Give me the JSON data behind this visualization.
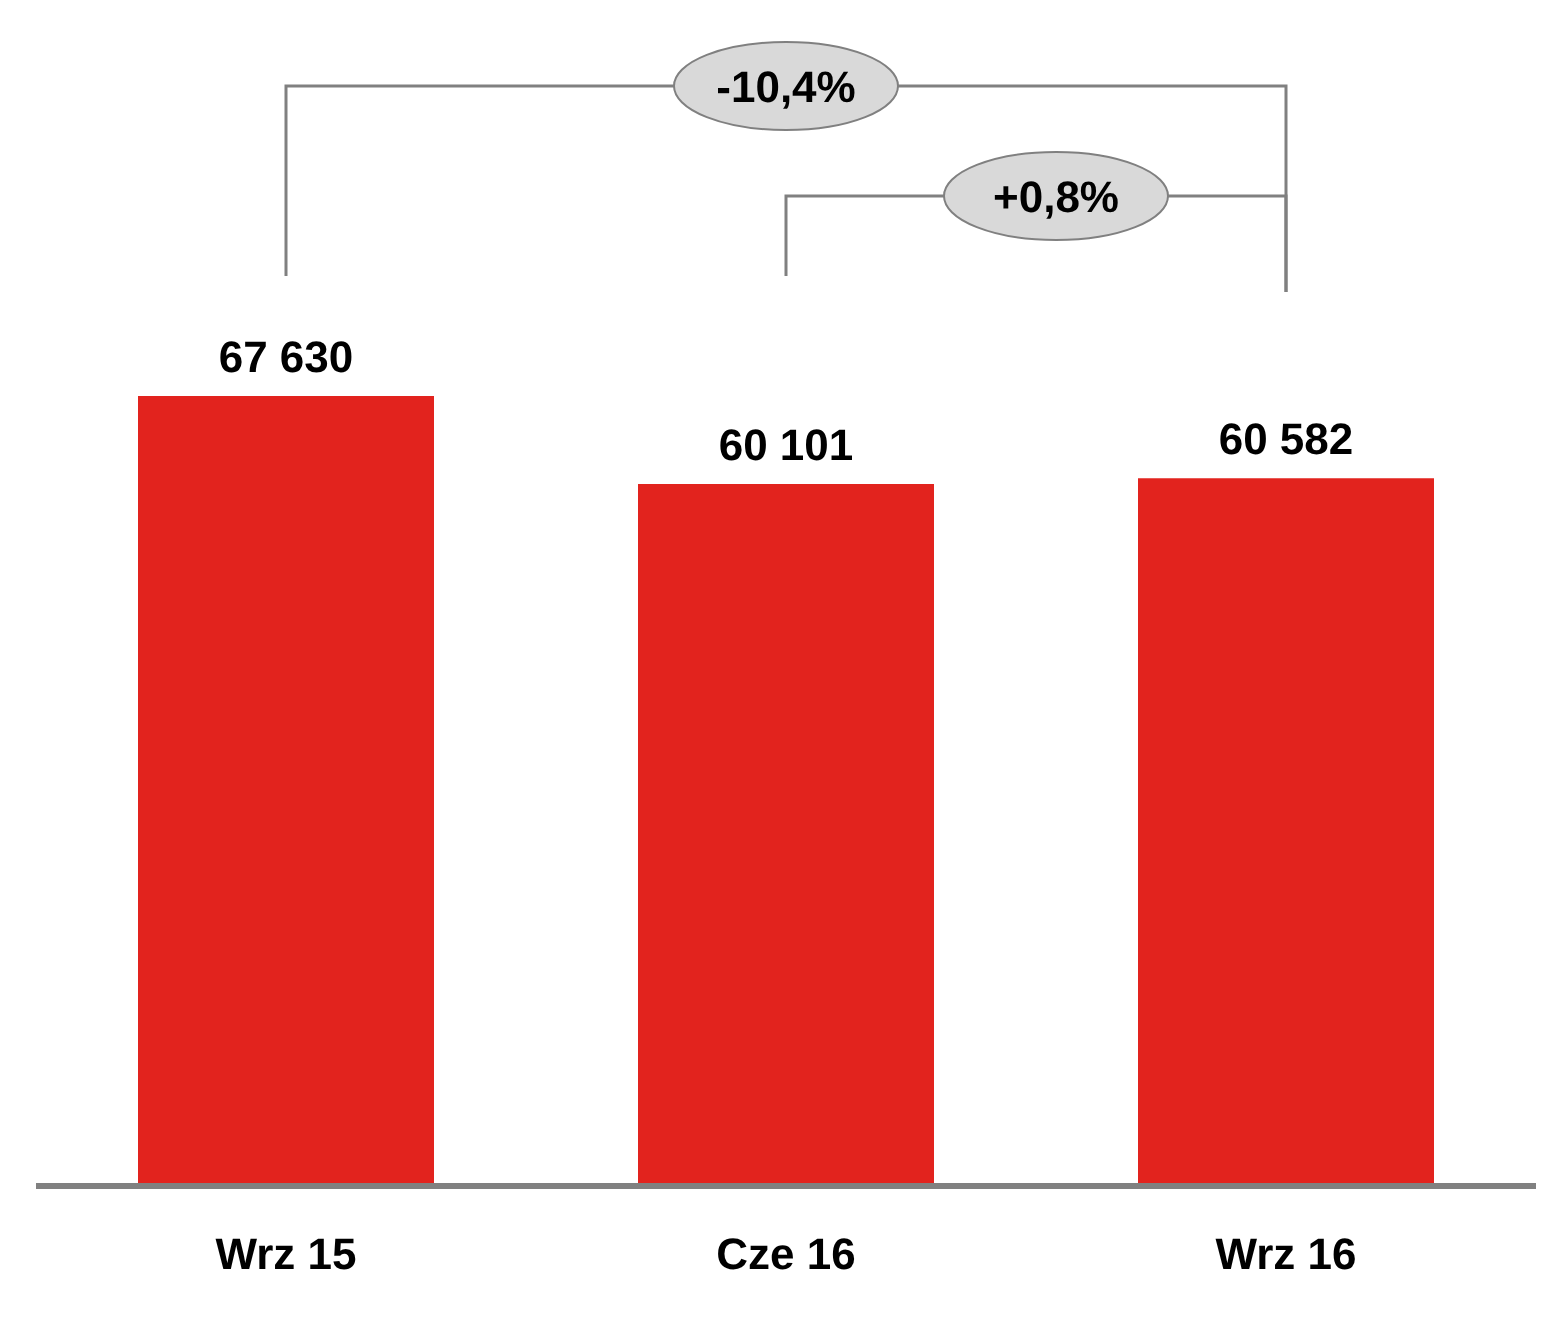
{
  "chart_data": {
    "type": "bar",
    "categories": [
      "Wrz 15",
      "Cze 16",
      "Wrz 16"
    ],
    "values": [
      67630,
      60101,
      60582
    ],
    "color": "#e2231e",
    "value_labels": [
      "67 630",
      "60 101",
      "60 582"
    ],
    "annotations": [
      "-10,4%",
      "+0,8%"
    ]
  }
}
